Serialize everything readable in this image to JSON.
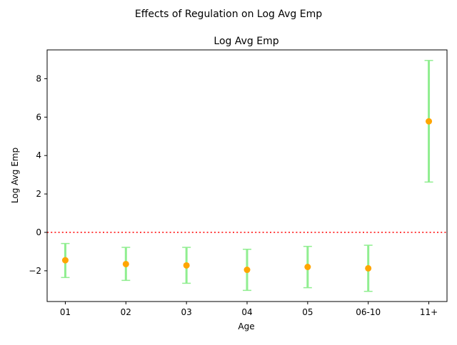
{
  "figure": {
    "suptitle": "Effects of Regulation on Log Avg Emp"
  },
  "chart_data": {
    "type": "scatter",
    "title": "Log Avg Emp",
    "xlabel": "Age",
    "ylabel": "Log Avg Emp",
    "categories": [
      "01",
      "02",
      "03",
      "04",
      "05",
      "06-10",
      "11+"
    ],
    "series": [
      {
        "values": [
          -1.45,
          -1.65,
          -1.72,
          -1.95,
          -1.8,
          -1.87,
          5.78
        ],
        "error_low": [
          -2.35,
          -2.5,
          -2.65,
          -3.02,
          -2.88,
          -3.07,
          2.62
        ],
        "error_high": [
          -0.58,
          -0.78,
          -0.78,
          -0.88,
          -0.73,
          -0.67,
          8.95
        ],
        "marker_color": "#ffa500",
        "errorbar_color": "#90ee90"
      }
    ],
    "reference_line": {
      "y": 0,
      "color": "#ff0000",
      "style": "dotted"
    },
    "ylim": [
      -3.6,
      9.5
    ],
    "yticks": [
      -2,
      0,
      2,
      4,
      6,
      8
    ],
    "ytick_labels": [
      "−2",
      "0",
      "2",
      "4",
      "6",
      "8"
    ],
    "grid": false,
    "legend": "none"
  }
}
